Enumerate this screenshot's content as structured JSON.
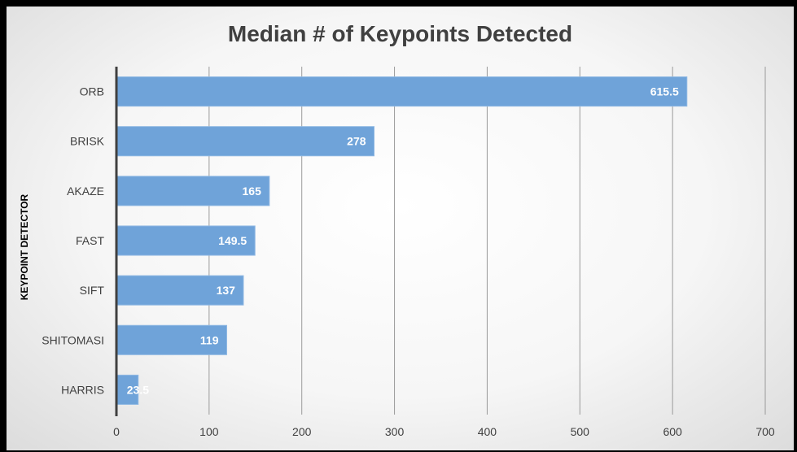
{
  "chart_data": {
    "type": "bar",
    "orientation": "horizontal",
    "title": "Median # of Keypoints Detected",
    "xlabel": "",
    "ylabel": "KEYPOINT DETECTOR",
    "categories": [
      "ORB",
      "BRISK",
      "AKAZE",
      "FAST",
      "SIFT",
      "SHITOMASI",
      "HARRIS"
    ],
    "values": [
      615.5,
      278,
      165,
      149.5,
      137,
      119,
      23.5
    ],
    "data_labels": [
      "615.5",
      "278",
      "165",
      "149.5",
      "137",
      "119",
      "23.5"
    ],
    "xlim": [
      0,
      700
    ],
    "xticks": [
      0,
      100,
      200,
      300,
      400,
      500,
      600,
      700
    ],
    "grid": "vertical",
    "bar_color": "#6fa3d9",
    "label_color": "#ffffff"
  }
}
